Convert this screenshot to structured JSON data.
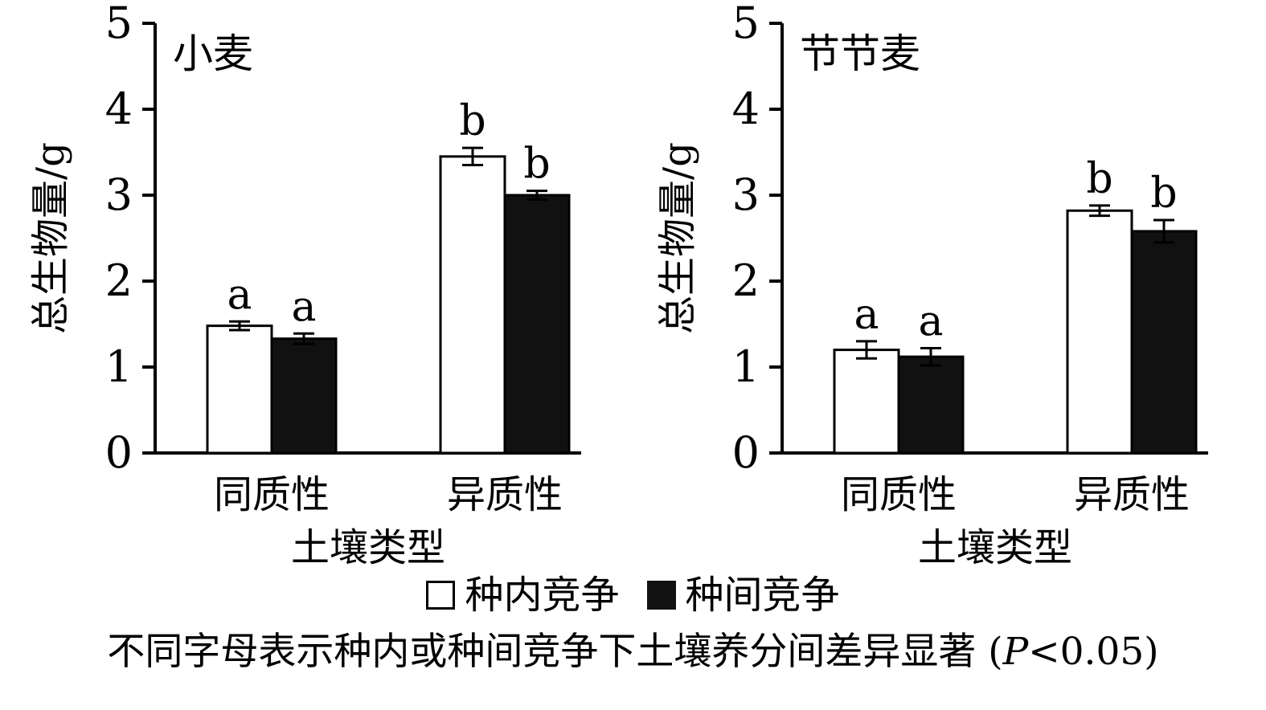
{
  "caption": {
    "full_text": "不同字母表示种内或种间竞争下土壤养分间差异显著 (P<0.05)",
    "prefix": "不同字母表示种内或种间竞争下土壤养分间差异显著 (",
    "italic_part": "P",
    "suffix": "<0.05)"
  },
  "legend": {
    "items": [
      {
        "label": "种内竞争",
        "swatch": "open-white-square"
      },
      {
        "label": "种间竞争",
        "swatch": "filled-black-square"
      }
    ]
  },
  "colors": {
    "bar_open_fill": "#ffffff",
    "bar_filled_fill": "#111111",
    "axis": "#000000"
  },
  "chart_data": [
    {
      "type": "bar",
      "title": "小麦",
      "ylabel": "总生物量/g",
      "xlabel": "土壤类型",
      "ylim": [
        0,
        5
      ],
      "yticks": [
        0,
        1,
        2,
        3,
        4,
        5
      ],
      "categories": [
        "同质性",
        "异质性"
      ],
      "grid": false,
      "series": [
        {
          "name": "种内竞争",
          "style": "open",
          "values": [
            1.48,
            3.45
          ],
          "errors": [
            0.05,
            0.1
          ],
          "letters": [
            "a",
            "b"
          ]
        },
        {
          "name": "种间竞争",
          "style": "filled",
          "values": [
            1.33,
            3.0
          ],
          "errors": [
            0.06,
            0.05
          ],
          "letters": [
            "a",
            "b"
          ]
        }
      ]
    },
    {
      "type": "bar",
      "title": "节节麦",
      "ylabel": "总生物量/g",
      "xlabel": "土壤类型",
      "ylim": [
        0,
        5
      ],
      "yticks": [
        0,
        1,
        2,
        3,
        4,
        5
      ],
      "categories": [
        "同质性",
        "异质性"
      ],
      "grid": false,
      "series": [
        {
          "name": "种内竞争",
          "style": "open",
          "values": [
            1.2,
            2.82
          ],
          "errors": [
            0.1,
            0.06
          ],
          "letters": [
            "a",
            "b"
          ]
        },
        {
          "name": "种间竞争",
          "style": "filled",
          "values": [
            1.12,
            2.58
          ],
          "errors": [
            0.1,
            0.13
          ],
          "letters": [
            "a",
            "b"
          ]
        }
      ]
    }
  ]
}
